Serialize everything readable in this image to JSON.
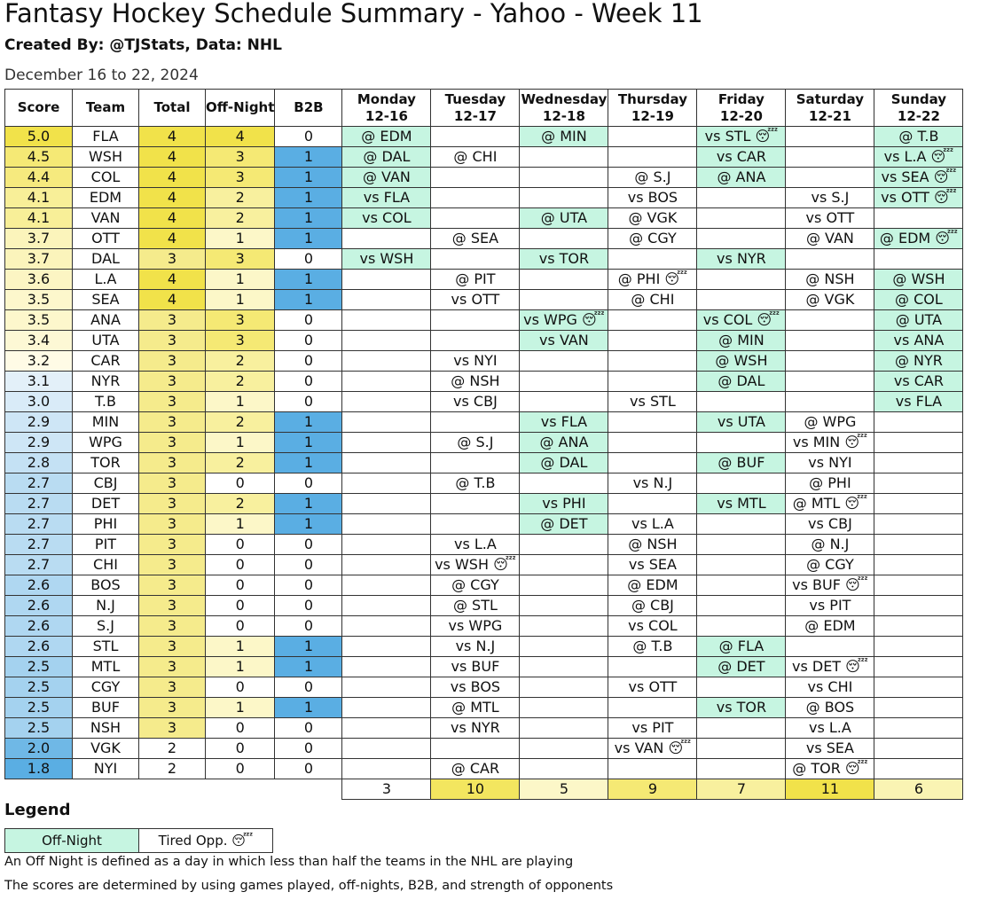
{
  "title": "Fantasy Hockey Schedule Summary - Yahoo - Week 11",
  "subtitle": "Created By: @TJStats, Data: NHL",
  "date_range": "December 16 to 22, 2024",
  "headers": {
    "score": "Score",
    "team": "Team",
    "total": "Total",
    "offnight": "Off-Night",
    "b2b": "B2B",
    "days": [
      {
        "name": "Monday",
        "date": "12-16"
      },
      {
        "name": "Tuesday",
        "date": "12-17"
      },
      {
        "name": "Wednesday",
        "date": "12-18"
      },
      {
        "name": "Thursday",
        "date": "12-19"
      },
      {
        "name": "Friday",
        "date": "12-20"
      },
      {
        "name": "Saturday",
        "date": "12-21"
      },
      {
        "name": "Sunday",
        "date": "12-22"
      }
    ]
  },
  "teams": [
    {
      "score": "5.0",
      "team": "FLA",
      "total": "4",
      "offnight": "4",
      "b2b": "0",
      "games": [
        {
          "t": "@ EDM",
          "off": true
        },
        {
          "t": ""
        },
        {
          "t": "@ MIN",
          "off": true
        },
        {
          "t": ""
        },
        {
          "t": "vs STL",
          "off": true,
          "tired": true
        },
        {
          "t": ""
        },
        {
          "t": "@ T.B",
          "off": true
        }
      ]
    },
    {
      "score": "4.5",
      "team": "WSH",
      "total": "4",
      "offnight": "3",
      "b2b": "1",
      "games": [
        {
          "t": "@ DAL",
          "off": true
        },
        {
          "t": "@ CHI"
        },
        {
          "t": ""
        },
        {
          "t": ""
        },
        {
          "t": "vs CAR",
          "off": true
        },
        {
          "t": ""
        },
        {
          "t": "vs L.A",
          "off": true,
          "tired": true
        }
      ]
    },
    {
      "score": "4.4",
      "team": "COL",
      "total": "4",
      "offnight": "3",
      "b2b": "1",
      "games": [
        {
          "t": "@ VAN",
          "off": true
        },
        {
          "t": ""
        },
        {
          "t": ""
        },
        {
          "t": "@ S.J"
        },
        {
          "t": "@ ANA",
          "off": true
        },
        {
          "t": ""
        },
        {
          "t": "vs SEA",
          "off": true,
          "tired": true
        }
      ]
    },
    {
      "score": "4.1",
      "team": "EDM",
      "total": "4",
      "offnight": "2",
      "b2b": "1",
      "games": [
        {
          "t": "vs FLA",
          "off": true
        },
        {
          "t": ""
        },
        {
          "t": ""
        },
        {
          "t": "vs BOS"
        },
        {
          "t": ""
        },
        {
          "t": "vs S.J"
        },
        {
          "t": "vs OTT",
          "off": true,
          "tired": true
        }
      ]
    },
    {
      "score": "4.1",
      "team": "VAN",
      "total": "4",
      "offnight": "2",
      "b2b": "1",
      "games": [
        {
          "t": "vs COL",
          "off": true
        },
        {
          "t": ""
        },
        {
          "t": "@ UTA",
          "off": true
        },
        {
          "t": "@ VGK"
        },
        {
          "t": ""
        },
        {
          "t": "vs OTT"
        },
        {
          "t": ""
        }
      ]
    },
    {
      "score": "3.7",
      "team": "OTT",
      "total": "4",
      "offnight": "1",
      "b2b": "1",
      "games": [
        {
          "t": ""
        },
        {
          "t": "@ SEA"
        },
        {
          "t": ""
        },
        {
          "t": "@ CGY"
        },
        {
          "t": ""
        },
        {
          "t": "@ VAN"
        },
        {
          "t": "@ EDM",
          "off": true,
          "tired": true
        }
      ]
    },
    {
      "score": "3.7",
      "team": "DAL",
      "total": "3",
      "offnight": "3",
      "b2b": "0",
      "games": [
        {
          "t": "vs WSH",
          "off": true
        },
        {
          "t": ""
        },
        {
          "t": "vs TOR",
          "off": true
        },
        {
          "t": ""
        },
        {
          "t": "vs NYR",
          "off": true
        },
        {
          "t": ""
        },
        {
          "t": ""
        }
      ]
    },
    {
      "score": "3.6",
      "team": "L.A",
      "total": "4",
      "offnight": "1",
      "b2b": "1",
      "games": [
        {
          "t": ""
        },
        {
          "t": "@ PIT"
        },
        {
          "t": ""
        },
        {
          "t": "@ PHI",
          "tired": true
        },
        {
          "t": ""
        },
        {
          "t": "@ NSH"
        },
        {
          "t": "@ WSH",
          "off": true
        }
      ]
    },
    {
      "score": "3.5",
      "team": "SEA",
      "total": "4",
      "offnight": "1",
      "b2b": "1",
      "games": [
        {
          "t": ""
        },
        {
          "t": "vs OTT"
        },
        {
          "t": ""
        },
        {
          "t": "@ CHI"
        },
        {
          "t": ""
        },
        {
          "t": "@ VGK"
        },
        {
          "t": "@ COL",
          "off": true
        }
      ]
    },
    {
      "score": "3.5",
      "team": "ANA",
      "total": "3",
      "offnight": "3",
      "b2b": "0",
      "games": [
        {
          "t": ""
        },
        {
          "t": ""
        },
        {
          "t": "vs WPG",
          "off": true,
          "tired": true
        },
        {
          "t": ""
        },
        {
          "t": "vs COL",
          "off": true,
          "tired": true
        },
        {
          "t": ""
        },
        {
          "t": "@ UTA",
          "off": true
        }
      ]
    },
    {
      "score": "3.4",
      "team": "UTA",
      "total": "3",
      "offnight": "3",
      "b2b": "0",
      "games": [
        {
          "t": ""
        },
        {
          "t": ""
        },
        {
          "t": "vs VAN",
          "off": true
        },
        {
          "t": ""
        },
        {
          "t": "@ MIN",
          "off": true
        },
        {
          "t": ""
        },
        {
          "t": "vs ANA",
          "off": true
        }
      ]
    },
    {
      "score": "3.2",
      "team": "CAR",
      "total": "3",
      "offnight": "2",
      "b2b": "0",
      "games": [
        {
          "t": ""
        },
        {
          "t": "vs NYI"
        },
        {
          "t": ""
        },
        {
          "t": ""
        },
        {
          "t": "@ WSH",
          "off": true
        },
        {
          "t": ""
        },
        {
          "t": "@ NYR",
          "off": true
        }
      ]
    },
    {
      "score": "3.1",
      "team": "NYR",
      "total": "3",
      "offnight": "2",
      "b2b": "0",
      "games": [
        {
          "t": ""
        },
        {
          "t": "@ NSH"
        },
        {
          "t": ""
        },
        {
          "t": ""
        },
        {
          "t": "@ DAL",
          "off": true
        },
        {
          "t": ""
        },
        {
          "t": "vs CAR",
          "off": true
        }
      ]
    },
    {
      "score": "3.0",
      "team": "T.B",
      "total": "3",
      "offnight": "1",
      "b2b": "0",
      "games": [
        {
          "t": ""
        },
        {
          "t": "vs CBJ"
        },
        {
          "t": ""
        },
        {
          "t": "vs STL"
        },
        {
          "t": ""
        },
        {
          "t": ""
        },
        {
          "t": "vs FLA",
          "off": true
        }
      ]
    },
    {
      "score": "2.9",
      "team": "MIN",
      "total": "3",
      "offnight": "2",
      "b2b": "1",
      "games": [
        {
          "t": ""
        },
        {
          "t": ""
        },
        {
          "t": "vs FLA",
          "off": true
        },
        {
          "t": ""
        },
        {
          "t": "vs UTA",
          "off": true
        },
        {
          "t": "@ WPG"
        },
        {
          "t": ""
        }
      ]
    },
    {
      "score": "2.9",
      "team": "WPG",
      "total": "3",
      "offnight": "1",
      "b2b": "1",
      "games": [
        {
          "t": ""
        },
        {
          "t": "@ S.J"
        },
        {
          "t": "@ ANA",
          "off": true
        },
        {
          "t": ""
        },
        {
          "t": ""
        },
        {
          "t": "vs MIN",
          "tired": true
        },
        {
          "t": ""
        }
      ]
    },
    {
      "score": "2.8",
      "team": "TOR",
      "total": "3",
      "offnight": "2",
      "b2b": "1",
      "games": [
        {
          "t": ""
        },
        {
          "t": ""
        },
        {
          "t": "@ DAL",
          "off": true
        },
        {
          "t": ""
        },
        {
          "t": "@ BUF",
          "off": true
        },
        {
          "t": "vs NYI"
        },
        {
          "t": ""
        }
      ]
    },
    {
      "score": "2.7",
      "team": "CBJ",
      "total": "3",
      "offnight": "0",
      "b2b": "0",
      "games": [
        {
          "t": ""
        },
        {
          "t": "@ T.B"
        },
        {
          "t": ""
        },
        {
          "t": "vs N.J"
        },
        {
          "t": ""
        },
        {
          "t": "@ PHI"
        },
        {
          "t": ""
        }
      ]
    },
    {
      "score": "2.7",
      "team": "DET",
      "total": "3",
      "offnight": "2",
      "b2b": "1",
      "games": [
        {
          "t": ""
        },
        {
          "t": ""
        },
        {
          "t": "vs PHI",
          "off": true
        },
        {
          "t": ""
        },
        {
          "t": "vs MTL",
          "off": true
        },
        {
          "t": "@ MTL",
          "tired": true
        },
        {
          "t": ""
        }
      ]
    },
    {
      "score": "2.7",
      "team": "PHI",
      "total": "3",
      "offnight": "1",
      "b2b": "1",
      "games": [
        {
          "t": ""
        },
        {
          "t": ""
        },
        {
          "t": "@ DET",
          "off": true
        },
        {
          "t": "vs L.A"
        },
        {
          "t": ""
        },
        {
          "t": "vs CBJ"
        },
        {
          "t": ""
        }
      ]
    },
    {
      "score": "2.7",
      "team": "PIT",
      "total": "3",
      "offnight": "0",
      "b2b": "0",
      "games": [
        {
          "t": ""
        },
        {
          "t": "vs L.A"
        },
        {
          "t": ""
        },
        {
          "t": "@ NSH"
        },
        {
          "t": ""
        },
        {
          "t": "@ N.J"
        },
        {
          "t": ""
        }
      ]
    },
    {
      "score": "2.7",
      "team": "CHI",
      "total": "3",
      "offnight": "0",
      "b2b": "0",
      "games": [
        {
          "t": ""
        },
        {
          "t": "vs WSH",
          "tired": true
        },
        {
          "t": ""
        },
        {
          "t": "vs SEA"
        },
        {
          "t": ""
        },
        {
          "t": "@ CGY"
        },
        {
          "t": ""
        }
      ]
    },
    {
      "score": "2.6",
      "team": "BOS",
      "total": "3",
      "offnight": "0",
      "b2b": "0",
      "games": [
        {
          "t": ""
        },
        {
          "t": "@ CGY"
        },
        {
          "t": ""
        },
        {
          "t": "@ EDM"
        },
        {
          "t": ""
        },
        {
          "t": "vs BUF",
          "tired": true
        },
        {
          "t": ""
        }
      ]
    },
    {
      "score": "2.6",
      "team": "N.J",
      "total": "3",
      "offnight": "0",
      "b2b": "0",
      "games": [
        {
          "t": ""
        },
        {
          "t": "@ STL"
        },
        {
          "t": ""
        },
        {
          "t": "@ CBJ"
        },
        {
          "t": ""
        },
        {
          "t": "vs PIT"
        },
        {
          "t": ""
        }
      ]
    },
    {
      "score": "2.6",
      "team": "S.J",
      "total": "3",
      "offnight": "0",
      "b2b": "0",
      "games": [
        {
          "t": ""
        },
        {
          "t": "vs WPG"
        },
        {
          "t": ""
        },
        {
          "t": "vs COL"
        },
        {
          "t": ""
        },
        {
          "t": "@ EDM"
        },
        {
          "t": ""
        }
      ]
    },
    {
      "score": "2.6",
      "team": "STL",
      "total": "3",
      "offnight": "1",
      "b2b": "1",
      "games": [
        {
          "t": ""
        },
        {
          "t": "vs N.J"
        },
        {
          "t": ""
        },
        {
          "t": "@ T.B"
        },
        {
          "t": "@ FLA",
          "off": true
        },
        {
          "t": ""
        },
        {
          "t": ""
        }
      ]
    },
    {
      "score": "2.5",
      "team": "MTL",
      "total": "3",
      "offnight": "1",
      "b2b": "1",
      "games": [
        {
          "t": ""
        },
        {
          "t": "vs BUF"
        },
        {
          "t": ""
        },
        {
          "t": ""
        },
        {
          "t": "@ DET",
          "off": true
        },
        {
          "t": "vs DET",
          "tired": true
        },
        {
          "t": ""
        }
      ]
    },
    {
      "score": "2.5",
      "team": "CGY",
      "total": "3",
      "offnight": "0",
      "b2b": "0",
      "games": [
        {
          "t": ""
        },
        {
          "t": "vs BOS"
        },
        {
          "t": ""
        },
        {
          "t": "vs OTT"
        },
        {
          "t": ""
        },
        {
          "t": "vs CHI"
        },
        {
          "t": ""
        }
      ]
    },
    {
      "score": "2.5",
      "team": "BUF",
      "total": "3",
      "offnight": "1",
      "b2b": "1",
      "games": [
        {
          "t": ""
        },
        {
          "t": "@ MTL"
        },
        {
          "t": ""
        },
        {
          "t": ""
        },
        {
          "t": "vs TOR",
          "off": true
        },
        {
          "t": "@ BOS"
        },
        {
          "t": ""
        }
      ]
    },
    {
      "score": "2.5",
      "team": "NSH",
      "total": "3",
      "offnight": "0",
      "b2b": "0",
      "games": [
        {
          "t": ""
        },
        {
          "t": "vs NYR"
        },
        {
          "t": ""
        },
        {
          "t": "vs PIT"
        },
        {
          "t": ""
        },
        {
          "t": "vs L.A"
        },
        {
          "t": ""
        }
      ]
    },
    {
      "score": "2.0",
      "team": "VGK",
      "total": "2",
      "offnight": "0",
      "b2b": "0",
      "games": [
        {
          "t": ""
        },
        {
          "t": ""
        },
        {
          "t": ""
        },
        {
          "t": "vs VAN",
          "tired": true
        },
        {
          "t": ""
        },
        {
          "t": "vs SEA"
        },
        {
          "t": ""
        }
      ]
    },
    {
      "score": "1.8",
      "team": "NYI",
      "total": "2",
      "offnight": "0",
      "b2b": "0",
      "games": [
        {
          "t": ""
        },
        {
          "t": "@ CAR"
        },
        {
          "t": ""
        },
        {
          "t": ""
        },
        {
          "t": ""
        },
        {
          "t": "@ TOR",
          "tired": true
        },
        {
          "t": ""
        }
      ]
    }
  ],
  "day_totals": [
    "3",
    "10",
    "5",
    "9",
    "7",
    "11",
    "6"
  ],
  "tired_icon": "sleepy-face-icon",
  "tired_glyph": "😴",
  "colors": {
    "offnight_bg": "#c6f5e1",
    "b2b_bg": "#5aaee3",
    "score_high": "#f1e24a",
    "score_low": "#5aaee3"
  },
  "legend": {
    "title": "Legend",
    "offnight_label": "Off-Night",
    "tired_label": "Tired Opp.",
    "note1": "An Off Night is defined as a day in which less than half the teams in the NHL are playing",
    "note2": "The scores are determined by using games played, off-nights, B2B, and strength of opponents"
  }
}
